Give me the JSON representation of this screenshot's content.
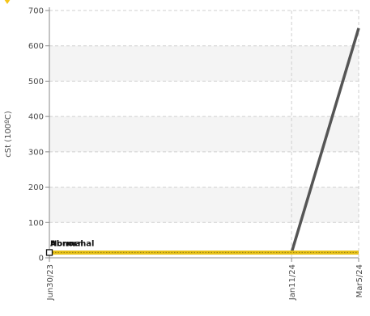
{
  "chart_data": {
    "type": "line",
    "title": "",
    "xlabel": "",
    "ylabel": "cSt (100ºC)",
    "ylim": [
      0,
      700
    ],
    "yticks": [
      0,
      100,
      200,
      300,
      400,
      500,
      600,
      700
    ],
    "x_dates": [
      "2023-06-30",
      "2024-01-11",
      "2024-03-05"
    ],
    "x_ticklabels": [
      "Jun30/23",
      "Jan11/24",
      "Mar5/24"
    ],
    "grid": true,
    "series": [
      {
        "color": "#555555",
        "points": [
          {
            "x": "2024-01-11",
            "y": 15
          },
          {
            "x": "2024-03-05",
            "y": 650
          }
        ]
      },
      {
        "color": "#e8c21a",
        "points": [
          {
            "x": "2023-06-30",
            "y": 15
          },
          {
            "x": "2024-01-11",
            "y": 15
          },
          {
            "x": "2024-03-05",
            "y": 15
          }
        ]
      }
    ],
    "annotations": [
      {
        "text": "Abnormal",
        "x": "2023-06-30",
        "y": 15
      },
      {
        "text": "Normal",
        "x": "2023-06-30",
        "y": 15
      }
    ],
    "colors": {
      "band": "#f4f4f4",
      "grid": "#cfcfcf",
      "axis": "#888888",
      "marker": "#f5c518"
    }
  }
}
